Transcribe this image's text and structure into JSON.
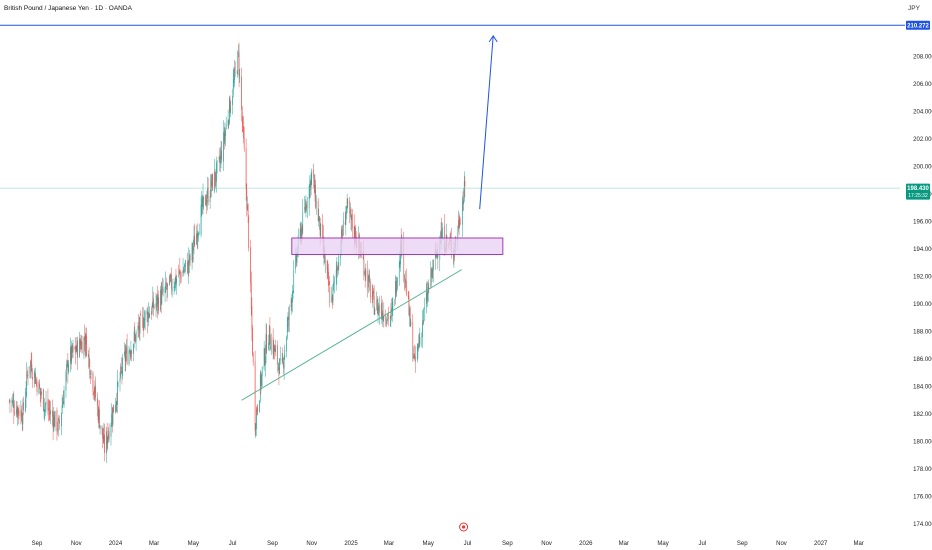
{
  "header": {
    "title": "British Pound / Japanese Yen · 1D · OANDA",
    "currency": "JPY"
  },
  "colors": {
    "up": "#26a69a",
    "down": "#ef5350",
    "trendline": "#4caf89",
    "zone_fill": "#ead2f2",
    "zone_border": "#9c27b0",
    "target": "#1e53e5",
    "price_tag": "#089981",
    "arrow": "#1e53e5",
    "event_marker": "#e53935"
  },
  "chart_data": {
    "type": "candlestick",
    "y_axis": {
      "range": [
        173.5,
        210.7
      ],
      "ticks": [
        "174.000",
        "176.000",
        "178.000",
        "180.000",
        "182.000",
        "184.000",
        "186.000",
        "188.000",
        "190.000",
        "192.000",
        "194.000",
        "196.000",
        "198.000",
        "200.000",
        "202.000",
        "204.000",
        "206.000",
        "208.000"
      ]
    },
    "x_axis": {
      "ticks": [
        "Sep",
        "Nov",
        "2024",
        "Mar",
        "May",
        "Jul",
        "Sep",
        "Nov",
        "2025",
        "Mar",
        "May",
        "Jul",
        "Sep",
        "Nov",
        "2026",
        "Mar",
        "May",
        "Jul",
        "Sep",
        "Nov",
        "2027",
        "Mar"
      ]
    },
    "price_anchors": [
      {
        "date": "2023-07-20",
        "price": 183.0
      },
      {
        "date": "2023-08-10",
        "price": 182.0
      },
      {
        "date": "2023-08-20",
        "price": 186.0
      },
      {
        "date": "2023-09-10",
        "price": 183.0
      },
      {
        "date": "2023-10-05",
        "price": 181.0
      },
      {
        "date": "2023-10-20",
        "price": 186.0
      },
      {
        "date": "2023-11-15",
        "price": 187.5
      },
      {
        "date": "2023-12-15",
        "price": 179.5
      },
      {
        "date": "2024-01-15",
        "price": 186.0
      },
      {
        "date": "2024-02-15",
        "price": 189.0
      },
      {
        "date": "2024-03-20",
        "price": 191.0
      },
      {
        "date": "2024-04-25",
        "price": 193.0
      },
      {
        "date": "2024-05-15",
        "price": 197.0
      },
      {
        "date": "2024-06-10",
        "price": 200.0
      },
      {
        "date": "2024-07-10",
        "price": 208.0
      },
      {
        "date": "2024-07-25",
        "price": 196.0
      },
      {
        "date": "2024-08-05",
        "price": 181.5
      },
      {
        "date": "2024-08-25",
        "price": 188.0
      },
      {
        "date": "2024-09-15",
        "price": 185.0
      },
      {
        "date": "2024-10-10",
        "price": 194.0
      },
      {
        "date": "2024-11-01",
        "price": 199.5
      },
      {
        "date": "2024-12-01",
        "price": 190.0
      },
      {
        "date": "2024-12-25",
        "price": 197.0
      },
      {
        "date": "2025-01-15",
        "price": 194.0
      },
      {
        "date": "2025-02-05",
        "price": 190.0
      },
      {
        "date": "2025-03-05",
        "price": 189.0
      },
      {
        "date": "2025-03-20",
        "price": 194.5
      },
      {
        "date": "2025-04-10",
        "price": 185.5
      },
      {
        "date": "2025-05-01",
        "price": 191.0
      },
      {
        "date": "2025-05-20",
        "price": 195.0
      },
      {
        "date": "2025-06-10",
        "price": 194.0
      },
      {
        "date": "2025-06-27",
        "price": 198.4
      }
    ],
    "annotations": {
      "support_trendline": {
        "from": {
          "date": "2024-07-15",
          "price": 183.0
        },
        "to": {
          "date": "2025-06-22",
          "price": 192.5
        }
      },
      "demand_zone": {
        "from_date": "2024-10-01",
        "to_date": "2025-08-25",
        "top": 194.8,
        "bottom": 193.6
      },
      "target_level": {
        "price": 210.272,
        "label": "210.272"
      },
      "current_price": {
        "price": 198.43,
        "label": "198.430",
        "countdown": "17:25:32"
      },
      "projection_arrow": {
        "from": {
          "date": "2025-07-20",
          "price": 196.9
        },
        "to": {
          "date": "2025-08-10",
          "price": 209.5
        }
      }
    }
  }
}
